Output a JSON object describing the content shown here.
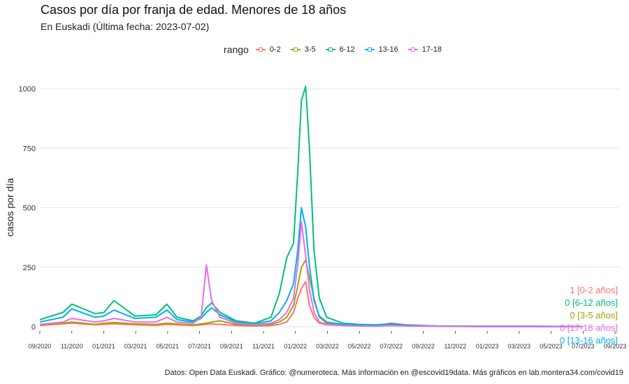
{
  "header": {
    "title": "Casos por día por franja de edad. Menores de 18 años",
    "subtitle": "En Euskadi  (Última fecha: 2023-07-02)"
  },
  "legend": {
    "title": "rango",
    "items": [
      {
        "label": "0-2",
        "color": "#F8766D"
      },
      {
        "label": "3-5",
        "color": "#A3A500"
      },
      {
        "label": "6-12",
        "color": "#00BF7D"
      },
      {
        "label": "13-16",
        "color": "#00B0F6"
      },
      {
        "label": "17-18",
        "color": "#E76BF3"
      }
    ]
  },
  "caption": "Datos: Open Data Euskadi. Gráfico: @numeroteca. Más información en @escovid19data.  Más gráficos en lab.montera34.com/covid19",
  "chart_data": {
    "type": "line",
    "title": "Casos por día por franja de edad. Menores de 18 años",
    "subtitle": "En Euskadi  (Última fecha: 2023-07-02)",
    "xlabel": "",
    "ylabel": "casos por día",
    "ylim": [
      0,
      1000
    ],
    "yticks": [
      0,
      250,
      500,
      750,
      1000
    ],
    "xlim": [
      "2020-09-01",
      "2023-09-01"
    ],
    "xticks": [
      "09/2020",
      "11/2020",
      "01/2021",
      "03/2021",
      "05/2021",
      "07/2021",
      "09/2021",
      "11/2021",
      "01/2022",
      "03/2022",
      "05/2022",
      "07/2022",
      "09/2022",
      "11/2022",
      "01/2023",
      "03/2023",
      "05/2023",
      "07/2023",
      "09/2023"
    ],
    "grid": "horizontal",
    "legend_position": "top",
    "x": [
      "2020-09-01",
      "2020-10-15",
      "2020-11-01",
      "2020-12-15",
      "2021-01-01",
      "2021-01-20",
      "2021-03-01",
      "2021-04-10",
      "2021-05-01",
      "2021-05-20",
      "2021-06-20",
      "2021-07-05",
      "2021-07-15",
      "2021-07-25",
      "2021-08-10",
      "2021-09-10",
      "2021-10-15",
      "2021-11-15",
      "2021-12-01",
      "2021-12-15",
      "2021-12-28",
      "2022-01-05",
      "2022-01-12",
      "2022-01-20",
      "2022-01-27",
      "2022-02-05",
      "2022-02-15",
      "2022-03-01",
      "2022-04-01",
      "2022-05-01",
      "2022-06-01",
      "2022-07-01",
      "2022-08-01",
      "2022-10-01",
      "2023-01-01",
      "2023-04-01",
      "2023-07-02"
    ],
    "series": [
      {
        "name": "0-2",
        "color": "#F8766D",
        "values": [
          5,
          12,
          15,
          8,
          10,
          12,
          8,
          6,
          10,
          8,
          5,
          8,
          10,
          12,
          10,
          5,
          3,
          5,
          10,
          20,
          60,
          120,
          160,
          190,
          90,
          40,
          15,
          8,
          5,
          4,
          3,
          15,
          8,
          3,
          2,
          2,
          1
        ]
      },
      {
        "name": "3-5",
        "color": "#A3A500",
        "values": [
          8,
          15,
          20,
          10,
          15,
          18,
          12,
          10,
          15,
          12,
          8,
          12,
          15,
          20,
          25,
          10,
          5,
          10,
          20,
          40,
          90,
          170,
          250,
          280,
          210,
          120,
          40,
          15,
          8,
          5,
          4,
          10,
          6,
          2,
          1,
          1,
          0
        ]
      },
      {
        "name": "6-12",
        "color": "#00BF7D",
        "values": [
          30,
          60,
          95,
          55,
          60,
          110,
          45,
          50,
          95,
          40,
          25,
          45,
          80,
          100,
          60,
          25,
          15,
          40,
          140,
          290,
          350,
          650,
          950,
          1010,
          760,
          320,
          120,
          40,
          15,
          10,
          8,
          12,
          6,
          3,
          2,
          2,
          0
        ]
      },
      {
        "name": "13-16",
        "color": "#00B0F6",
        "values": [
          20,
          40,
          75,
          40,
          45,
          70,
          35,
          40,
          70,
          30,
          20,
          35,
          60,
          80,
          50,
          20,
          12,
          25,
          60,
          110,
          180,
          320,
          500,
          420,
          260,
          110,
          45,
          20,
          10,
          6,
          5,
          8,
          4,
          2,
          1,
          1,
          0
        ]
      },
      {
        "name": "17-18",
        "color": "#E76BF3",
        "values": [
          10,
          20,
          35,
          20,
          25,
          35,
          20,
          20,
          40,
          20,
          15,
          40,
          260,
          110,
          40,
          15,
          8,
          15,
          30,
          60,
          120,
          260,
          440,
          300,
          160,
          60,
          20,
          10,
          5,
          3,
          2,
          5,
          3,
          2,
          1,
          1,
          0
        ]
      }
    ],
    "end_labels": [
      {
        "text": "1 [0-2 años]",
        "color": "#F8766D"
      },
      {
        "text": "0 [6-12 años]",
        "color": "#00BF7D"
      },
      {
        "text": "0 [3-5 años]",
        "color": "#A3A500"
      },
      {
        "text": "0 [17-18 años]",
        "color": "#E76BF3"
      },
      {
        "text": "0 [13-16 años]",
        "color": "#00B0F6"
      }
    ]
  }
}
